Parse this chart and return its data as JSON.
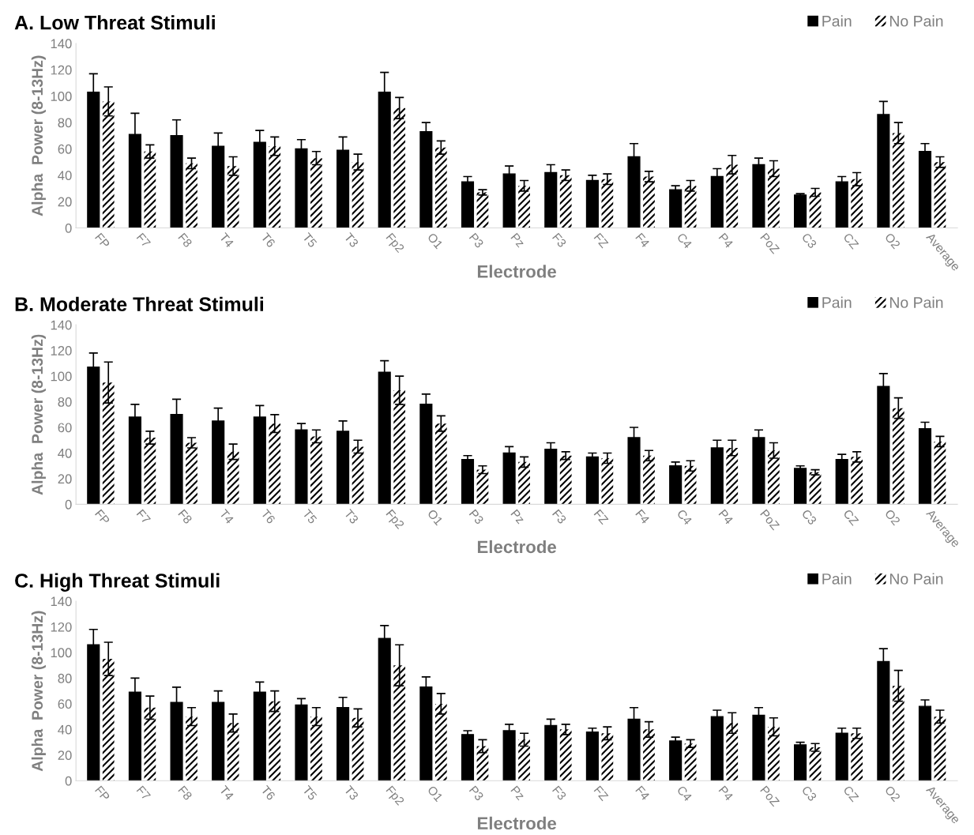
{
  "chart_data": [
    {
      "type": "bar",
      "title": "A. Low Threat Stimuli",
      "xlabel": "Electrode",
      "ylabel": "Alpha  Power (8-13Hz)",
      "categories": [
        "FP",
        "F7",
        "F8",
        "T4",
        "T6",
        "T5",
        "T3",
        "Fp2",
        "O1",
        "P3",
        "Pz",
        "F3",
        "FZ",
        "F4",
        "C4",
        "P4",
        "PoZ",
        "C3",
        "CZ",
        "O2",
        "Average"
      ],
      "series": [
        {
          "name": "Pain",
          "color": "#000000",
          "values": [
            103,
            71,
            70,
            62,
            65,
            60,
            59,
            103,
            73,
            35,
            41,
            42,
            36,
            54,
            29,
            39,
            48,
            25,
            35,
            86,
            58
          ],
          "errors": [
            14,
            16,
            12,
            10,
            9,
            7,
            10,
            15,
            7,
            4,
            6,
            6,
            4,
            10,
            3,
            6,
            5,
            1,
            4,
            10,
            6
          ]
        },
        {
          "name": "No Pain",
          "color": "#000000",
          "values": [
            96,
            58,
            49,
            47,
            62,
            53,
            50,
            91,
            61,
            27,
            32,
            40,
            37,
            39,
            32,
            48,
            45,
            27,
            37,
            72,
            50
          ],
          "errors": [
            11,
            5,
            4,
            7,
            7,
            5,
            6,
            8,
            5,
            2,
            4,
            4,
            4,
            4,
            4,
            7,
            6,
            3,
            5,
            8,
            4
          ]
        }
      ],
      "ylim": [
        0,
        140
      ],
      "yticks": [
        0,
        20,
        40,
        60,
        80,
        100,
        120,
        140
      ],
      "grid": false,
      "legend": "top right"
    },
    {
      "type": "bar",
      "title": "B. Moderate Threat Stimuli",
      "xlabel": "Electrode",
      "ylabel": "Alpha  Power (8-13Hz)",
      "categories": [
        "FP",
        "F7",
        "F8",
        "T4",
        "T6",
        "T5",
        "T3",
        "Fp2",
        "O1",
        "P3",
        "Pz",
        "F3",
        "FZ",
        "F4",
        "C4",
        "P4",
        "PoZ",
        "C3",
        "CZ",
        "O2",
        "Average"
      ],
      "series": [
        {
          "name": "Pain",
          "color": "#000000",
          "values": [
            107,
            68,
            70,
            65,
            68,
            58,
            57,
            103,
            78,
            35,
            40,
            43,
            37,
            52,
            30,
            44,
            52,
            28,
            35,
            92,
            59
          ],
          "errors": [
            11,
            10,
            12,
            10,
            9,
            5,
            8,
            9,
            8,
            3,
            5,
            5,
            3,
            8,
            3,
            6,
            6,
            2,
            4,
            10,
            5
          ]
        },
        {
          "name": "No Pain",
          "color": "#000000",
          "values": [
            95,
            52,
            48,
            41,
            63,
            53,
            45,
            89,
            63,
            27,
            33,
            38,
            36,
            38,
            30,
            44,
            42,
            25,
            37,
            75,
            49
          ],
          "errors": [
            16,
            5,
            4,
            6,
            7,
            5,
            5,
            11,
            6,
            3,
            4,
            3,
            4,
            4,
            4,
            6,
            6,
            2,
            4,
            8,
            4
          ]
        }
      ],
      "ylim": [
        0,
        140
      ],
      "yticks": [
        0,
        20,
        40,
        60,
        80,
        100,
        120,
        140
      ],
      "grid": false,
      "legend": "top right"
    },
    {
      "type": "bar",
      "title": "C. High Threat Stimuli",
      "xlabel": "Electrode",
      "ylabel": "Alpha  Power (8-13Hz)",
      "categories": [
        "FP",
        "F7",
        "F8",
        "T4",
        "T6",
        "T5",
        "T3",
        "Fp2",
        "O1",
        "P3",
        "Pz",
        "F3",
        "FZ",
        "F4",
        "C4",
        "P4",
        "PoZ",
        "C3",
        "CZ",
        "O2",
        "Average"
      ],
      "series": [
        {
          "name": "Pain",
          "color": "#000000",
          "values": [
            106,
            69,
            61,
            61,
            69,
            59,
            57,
            111,
            73,
            36,
            39,
            43,
            38,
            48,
            31,
            50,
            51,
            28,
            37,
            93,
            58
          ],
          "errors": [
            12,
            11,
            12,
            9,
            8,
            5,
            8,
            10,
            8,
            3,
            5,
            5,
            3,
            9,
            3,
            5,
            6,
            2,
            4,
            10,
            5
          ]
        },
        {
          "name": "No Pain",
          "color": "#000000",
          "values": [
            95,
            57,
            50,
            45,
            62,
            50,
            49,
            90,
            60,
            27,
            32,
            40,
            37,
            40,
            29,
            45,
            42,
            26,
            37,
            74,
            50
          ],
          "errors": [
            13,
            9,
            7,
            7,
            8,
            7,
            7,
            16,
            8,
            5,
            5,
            4,
            5,
            6,
            3,
            8,
            7,
            3,
            4,
            12,
            5
          ]
        }
      ],
      "ylim": [
        0,
        140
      ],
      "yticks": [
        0,
        20,
        40,
        60,
        80,
        100,
        120,
        140
      ],
      "grid": false,
      "legend": "top right"
    }
  ]
}
